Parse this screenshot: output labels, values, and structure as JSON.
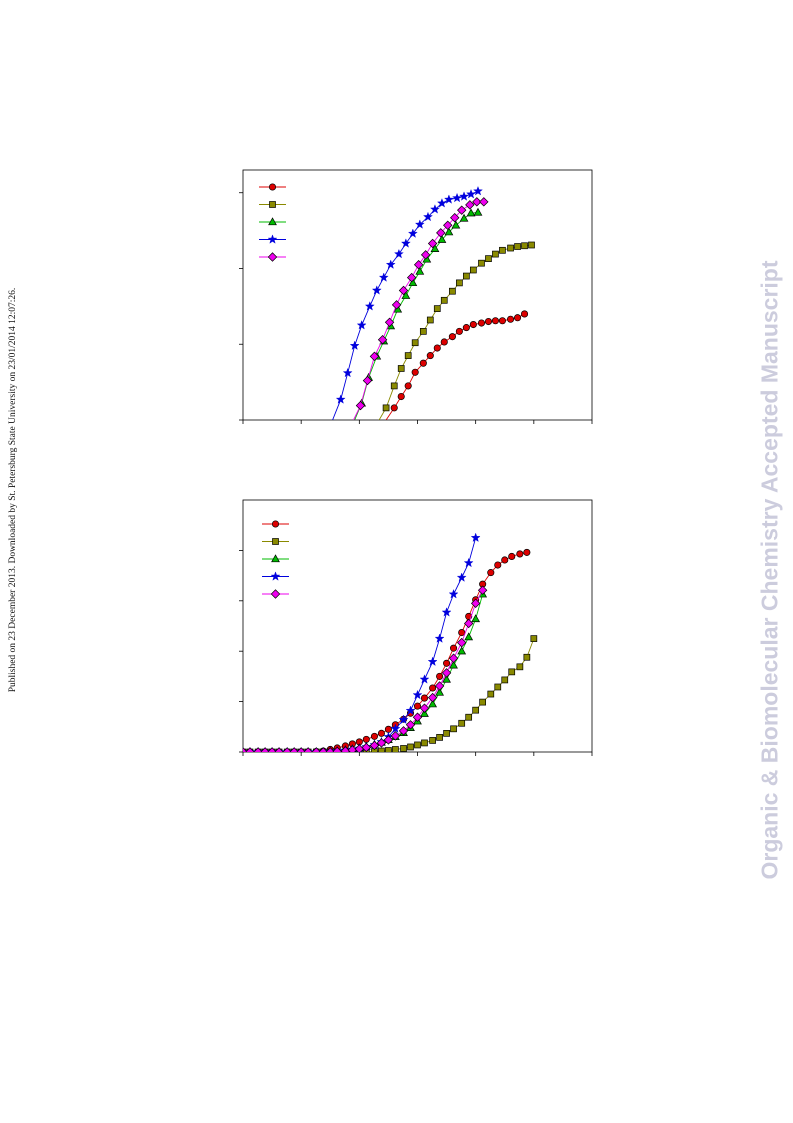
{
  "side_note": "Published on 23 December 2013. Downloaded by St. Petersburg State University on 23/01/2014 12:07:26.",
  "watermark": "Organic & Biomolecular Chemistry Accepted Manuscript",
  "colors": {
    "red": "#dd0000",
    "olive": "#8a8a00",
    "green": "#00bb00",
    "blue": "#0000dd",
    "magenta": "#ee00ee"
  },
  "chart_data": [
    {
      "type": "line",
      "title": "",
      "xlabel": "",
      "ylabel": "",
      "xlim": [
        0,
        30
      ],
      "ylim": [
        0,
        3.3
      ],
      "grid": false,
      "legend": "top-left",
      "series": [
        {
          "color": "#dd0000",
          "marker": "circle",
          "x": [
            12.3,
            13.0,
            13.6,
            14.2,
            14.8,
            15.5,
            16.1,
            16.7,
            17.3,
            18.0,
            18.6,
            19.2,
            19.8,
            20.5,
            21.1,
            21.7,
            22.3,
            23.0,
            23.6,
            24.2
          ],
          "y": [
            0.0,
            0.16,
            0.31,
            0.45,
            0.63,
            0.75,
            0.85,
            0.95,
            1.03,
            1.1,
            1.17,
            1.22,
            1.26,
            1.28,
            1.3,
            1.31,
            1.31,
            1.33,
            1.35,
            1.4
          ]
        },
        {
          "color": "#8a8a00",
          "marker": "square",
          "x": [
            11.7,
            12.3,
            13.0,
            13.6,
            14.2,
            14.8,
            15.5,
            16.1,
            16.7,
            17.3,
            18.0,
            18.6,
            19.2,
            19.8,
            20.5,
            21.1,
            21.7,
            22.3,
            23.0,
            23.6,
            24.2,
            24.8
          ],
          "y": [
            0.0,
            0.16,
            0.45,
            0.68,
            0.85,
            1.02,
            1.17,
            1.32,
            1.47,
            1.58,
            1.7,
            1.81,
            1.9,
            1.98,
            2.07,
            2.13,
            2.19,
            2.24,
            2.27,
            2.29,
            2.3,
            2.31
          ]
        },
        {
          "color": "#00bb00",
          "marker": "triangle",
          "x": [
            9.6,
            10.2,
            10.8,
            11.5,
            12.1,
            12.7,
            13.3,
            14.0,
            14.6,
            15.2,
            15.8,
            16.5,
            17.1,
            17.7,
            18.3,
            19.0,
            19.6,
            20.2
          ],
          "y": [
            0.0,
            0.22,
            0.56,
            0.84,
            1.04,
            1.24,
            1.46,
            1.64,
            1.81,
            1.96,
            2.12,
            2.26,
            2.38,
            2.48,
            2.57,
            2.66,
            2.73,
            2.74
          ]
        },
        {
          "color": "#0000dd",
          "marker": "star",
          "x": [
            7.7,
            8.4,
            9.0,
            9.6,
            10.2,
            10.9,
            11.5,
            12.1,
            12.7,
            13.4,
            14.0,
            14.6,
            15.2,
            15.9,
            16.5,
            17.1,
            17.7,
            18.4,
            19.0,
            19.6,
            20.2
          ],
          "y": [
            0.0,
            0.27,
            0.62,
            0.98,
            1.25,
            1.5,
            1.71,
            1.88,
            2.05,
            2.19,
            2.33,
            2.46,
            2.58,
            2.68,
            2.78,
            2.86,
            2.91,
            2.93,
            2.95,
            2.98,
            3.02
          ]
        },
        {
          "color": "#ee00ee",
          "marker": "diamond",
          "x": [
            9.5,
            10.1,
            10.7,
            11.3,
            12.0,
            12.6,
            13.2,
            13.8,
            14.5,
            15.1,
            15.7,
            16.3,
            17.0,
            17.6,
            18.2,
            18.8,
            19.5,
            20.1,
            20.7
          ],
          "y": [
            0.0,
            0.19,
            0.52,
            0.84,
            1.06,
            1.29,
            1.52,
            1.71,
            1.88,
            2.05,
            2.18,
            2.33,
            2.47,
            2.57,
            2.67,
            2.77,
            2.84,
            2.88,
            2.88
          ]
        }
      ]
    },
    {
      "type": "line",
      "title": "",
      "xlabel": "",
      "ylabel": "",
      "xlim": [
        0,
        30
      ],
      "ylim": [
        0,
        5
      ],
      "grid": false,
      "legend": "top-left",
      "series": [
        {
          "color": "#dd0000",
          "marker": "circle",
          "x": [
            0.0,
            0.6,
            1.3,
            1.9,
            2.5,
            3.1,
            3.8,
            4.4,
            5.0,
            5.6,
            6.3,
            6.9,
            7.5,
            8.1,
            8.8,
            9.4,
            10.0,
            10.6,
            11.3,
            11.9,
            12.5,
            13.1,
            13.8,
            14.4,
            15.0,
            15.6,
            16.3,
            16.9,
            17.5,
            18.1,
            18.8,
            19.4,
            20.0,
            20.6,
            21.3,
            21.9,
            22.5,
            23.1,
            23.8,
            24.4
          ],
          "y": [
            0.0,
            0.0,
            0.0,
            0.0,
            0.0,
            0.0,
            0.0,
            0.0,
            0.0,
            0.0,
            0.01,
            0.02,
            0.05,
            0.08,
            0.12,
            0.16,
            0.2,
            0.25,
            0.31,
            0.37,
            0.45,
            0.54,
            0.65,
            0.77,
            0.91,
            1.07,
            1.27,
            1.5,
            1.76,
            2.06,
            2.37,
            2.69,
            3.02,
            3.33,
            3.56,
            3.71,
            3.81,
            3.88,
            3.93,
            3.96
          ]
        },
        {
          "color": "#8a8a00",
          "marker": "square",
          "x": [
            0.0,
            0.6,
            1.3,
            1.9,
            2.5,
            3.1,
            3.8,
            4.4,
            5.0,
            5.6,
            6.3,
            6.9,
            7.5,
            8.1,
            8.8,
            9.4,
            10.0,
            10.6,
            11.3,
            11.9,
            12.5,
            13.1,
            13.8,
            14.4,
            15.0,
            15.6,
            16.3,
            16.9,
            17.5,
            18.1,
            18.8,
            19.4,
            20.0,
            20.6,
            21.3,
            21.9,
            22.5,
            23.1,
            23.8,
            24.4,
            25.0
          ],
          "y": [
            0.0,
            0.0,
            0.0,
            0.0,
            0.0,
            0.0,
            0.0,
            0.0,
            0.0,
            0.0,
            0.0,
            0.0,
            0.0,
            0.0,
            0.0,
            0.0,
            0.0,
            0.0,
            0.01,
            0.02,
            0.03,
            0.05,
            0.07,
            0.1,
            0.14,
            0.18,
            0.23,
            0.29,
            0.37,
            0.46,
            0.57,
            0.69,
            0.83,
            0.99,
            1.15,
            1.29,
            1.43,
            1.59,
            1.69,
            1.88,
            2.25
          ]
        },
        {
          "color": "#00bb00",
          "marker": "triangle",
          "x": [
            0.0,
            0.6,
            1.3,
            1.9,
            2.5,
            3.1,
            3.8,
            4.4,
            5.0,
            5.6,
            6.3,
            6.9,
            7.5,
            8.1,
            8.8,
            9.4,
            10.0,
            10.6,
            11.3,
            11.9,
            12.5,
            13.1,
            13.8,
            14.4,
            15.0,
            15.6,
            16.3,
            16.9,
            17.5,
            18.1,
            18.8,
            19.4,
            20.0,
            20.6
          ],
          "y": [
            0.0,
            0.0,
            0.0,
            0.0,
            0.0,
            0.0,
            0.0,
            0.0,
            0.0,
            0.0,
            0.0,
            0.0,
            0.01,
            0.02,
            0.04,
            0.06,
            0.08,
            0.11,
            0.15,
            0.19,
            0.24,
            0.3,
            0.38,
            0.48,
            0.61,
            0.76,
            0.95,
            1.18,
            1.44,
            1.72,
            2.0,
            2.28,
            2.64,
            3.13
          ]
        },
        {
          "color": "#0000dd",
          "marker": "star",
          "x": [
            0.0,
            0.6,
            1.3,
            1.9,
            2.5,
            3.1,
            3.8,
            4.4,
            5.0,
            5.6,
            6.3,
            6.9,
            7.5,
            8.1,
            8.8,
            9.4,
            10.0,
            10.6,
            11.3,
            11.9,
            12.5,
            13.1,
            13.8,
            14.4,
            15.0,
            15.6,
            16.3,
            16.9,
            17.5,
            18.1,
            18.8,
            19.4,
            20.0
          ],
          "y": [
            0.0,
            0.0,
            0.0,
            0.0,
            0.0,
            0.0,
            0.0,
            0.0,
            0.0,
            0.0,
            0.0,
            0.0,
            0.01,
            0.02,
            0.03,
            0.05,
            0.07,
            0.1,
            0.14,
            0.2,
            0.3,
            0.46,
            0.64,
            0.82,
            1.13,
            1.44,
            1.79,
            2.25,
            2.77,
            3.13,
            3.46,
            3.75,
            4.25
          ]
        },
        {
          "color": "#ee00ee",
          "marker": "diamond",
          "x": [
            0.0,
            0.6,
            1.3,
            1.9,
            2.5,
            3.1,
            3.8,
            4.4,
            5.0,
            5.6,
            6.3,
            6.9,
            7.5,
            8.1,
            8.8,
            9.4,
            10.0,
            10.6,
            11.3,
            11.9,
            12.5,
            13.1,
            13.8,
            14.4,
            15.0,
            15.6,
            16.3,
            16.9,
            17.5,
            18.1,
            18.8,
            19.4,
            20.0,
            20.6
          ],
          "y": [
            0.0,
            0.0,
            0.0,
            0.0,
            0.0,
            0.0,
            0.0,
            0.0,
            0.0,
            0.0,
            0.0,
            0.0,
            0.0,
            0.01,
            0.02,
            0.04,
            0.06,
            0.09,
            0.13,
            0.18,
            0.24,
            0.32,
            0.42,
            0.54,
            0.69,
            0.87,
            1.08,
            1.31,
            1.57,
            1.86,
            2.17,
            2.55,
            2.95,
            3.21
          ]
        }
      ]
    }
  ]
}
